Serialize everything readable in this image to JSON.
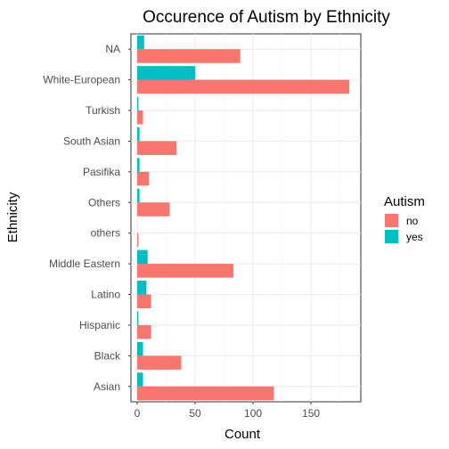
{
  "chart_data": {
    "type": "bar",
    "orientation": "horizontal",
    "title": "Occurence of Autism by Ethnicity",
    "xlabel": "Count",
    "ylabel": "Ethnicity",
    "xlim": [
      0,
      190
    ],
    "xticks": [
      0,
      50,
      100,
      150
    ],
    "grid": true,
    "legend_position": "right",
    "legend_title": "Autism",
    "categories": [
      "Asian",
      "Black",
      "Hispanic",
      "Latino",
      "Middle Eastern ",
      "others",
      "Others",
      "Pasifika",
      "South Asian",
      "Turkish",
      "White-European",
      "NA"
    ],
    "series": [
      {
        "name": "no",
        "color": "#F8766D",
        "values": [
          118,
          38,
          12,
          12,
          83,
          1,
          28,
          10,
          34,
          5,
          183,
          89
        ]
      },
      {
        "name": "yes",
        "color": "#00BFC4",
        "values": [
          5,
          5,
          1,
          8,
          9,
          0,
          2,
          2,
          2,
          1,
          50,
          6
        ]
      }
    ]
  }
}
